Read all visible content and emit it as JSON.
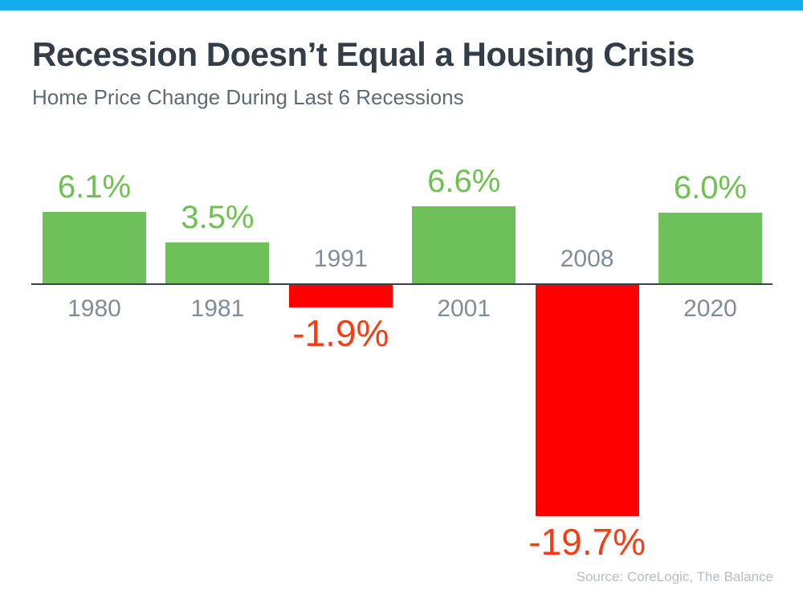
{
  "accent_bar": {
    "color": "#14ACEC"
  },
  "header": {
    "title": "Recession Doesn’t Equal a Housing Crisis",
    "subtitle": "Home Price Change During Last 6 Recessions"
  },
  "chart_data": {
    "type": "bar",
    "categories": [
      "1980",
      "1981",
      "1991",
      "2001",
      "2008",
      "2020"
    ],
    "values": [
      6.1,
      3.5,
      -1.9,
      6.6,
      -19.7,
      6.0
    ],
    "value_labels": [
      "6.1%",
      "3.5%",
      "-1.9%",
      "6.6%",
      "-19.7%",
      "6.0%"
    ],
    "title": "Recession Doesn’t Equal a Housing Crisis",
    "subtitle": "Home Price Change During Last 6 Recessions",
    "xlabel": "",
    "ylabel": "",
    "ylim": [
      -19.7,
      6.6
    ],
    "grid": false,
    "legend": false,
    "baseline_axis": true,
    "positive_color": "#6EC15A",
    "negative_color": "#FE0000",
    "positive_label_color": "#6CC14F",
    "negative_label_color": "#FA3C12",
    "category_label_color": "#7E8D99",
    "axis_color": "#37424C"
  },
  "footer": {
    "source": "Source: CoreLogic, The Balance"
  }
}
